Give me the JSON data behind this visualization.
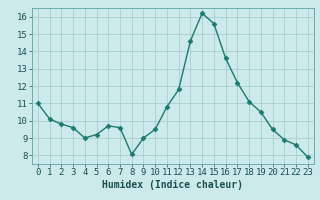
{
  "x": [
    0,
    1,
    2,
    3,
    4,
    5,
    6,
    7,
    8,
    9,
    10,
    11,
    12,
    13,
    14,
    15,
    16,
    17,
    18,
    19,
    20,
    21,
    22,
    23
  ],
  "y": [
    11.0,
    10.1,
    9.8,
    9.6,
    9.0,
    9.2,
    9.7,
    9.6,
    8.05,
    9.0,
    9.5,
    10.8,
    11.8,
    14.6,
    16.2,
    15.6,
    13.6,
    12.2,
    11.1,
    10.5,
    9.5,
    8.9,
    8.6,
    7.9
  ],
  "line_color": "#1a7a6e",
  "marker": "D",
  "markersize": 2.5,
  "linewidth": 1.0,
  "xlabel": "Humidex (Indice chaleur)",
  "xlabel_fontsize": 7,
  "bg_color": "#cceaea",
  "grid_color": "#aacece",
  "tick_color": "#1a5050",
  "xlim": [
    -0.5,
    23.5
  ],
  "ylim": [
    7.5,
    16.5
  ],
  "yticks": [
    8,
    9,
    10,
    11,
    12,
    13,
    14,
    15,
    16
  ],
  "xticks": [
    0,
    1,
    2,
    3,
    4,
    5,
    6,
    7,
    8,
    9,
    10,
    11,
    12,
    13,
    14,
    15,
    16,
    17,
    18,
    19,
    20,
    21,
    22,
    23
  ],
  "tick_fontsize": 6.5
}
